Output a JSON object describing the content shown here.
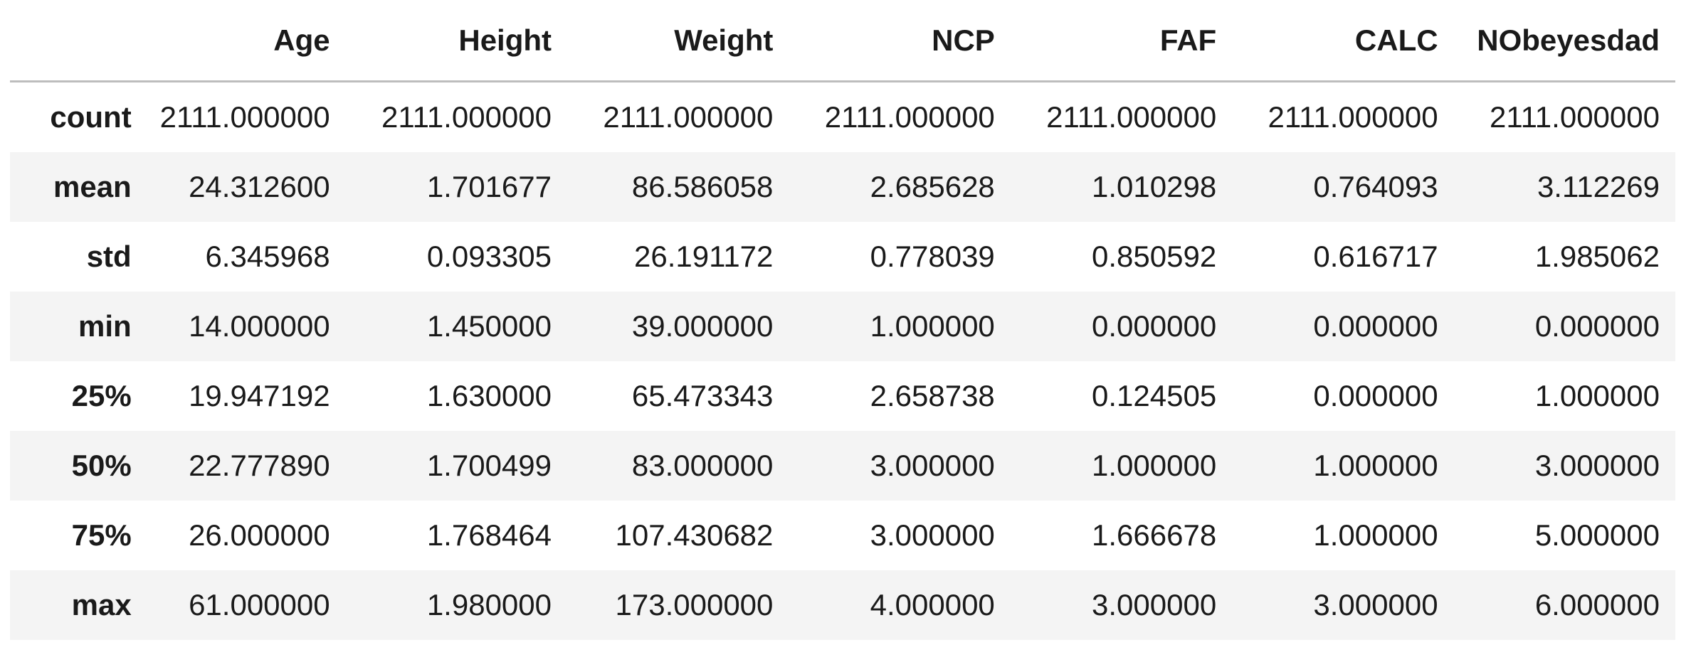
{
  "table": {
    "index_header": "",
    "columns": [
      "Age",
      "Height",
      "Weight",
      "NCP",
      "FAF",
      "CALC",
      "NObeyesdad"
    ],
    "rows": [
      {
        "label": "count",
        "values": [
          "2111.000000",
          "2111.000000",
          "2111.000000",
          "2111.000000",
          "2111.000000",
          "2111.000000",
          "2111.000000"
        ]
      },
      {
        "label": "mean",
        "values": [
          "24.312600",
          "1.701677",
          "86.586058",
          "2.685628",
          "1.010298",
          "0.764093",
          "3.112269"
        ]
      },
      {
        "label": "std",
        "values": [
          "6.345968",
          "0.093305",
          "26.191172",
          "0.778039",
          "0.850592",
          "0.616717",
          "1.985062"
        ]
      },
      {
        "label": "min",
        "values": [
          "14.000000",
          "1.450000",
          "39.000000",
          "1.000000",
          "0.000000",
          "0.000000",
          "0.000000"
        ]
      },
      {
        "label": "25%",
        "values": [
          "19.947192",
          "1.630000",
          "65.473343",
          "2.658738",
          "0.124505",
          "0.000000",
          "1.000000"
        ]
      },
      {
        "label": "50%",
        "values": [
          "22.777890",
          "1.700499",
          "83.000000",
          "3.000000",
          "1.000000",
          "1.000000",
          "3.000000"
        ]
      },
      {
        "label": "75%",
        "values": [
          "26.000000",
          "1.768464",
          "107.430682",
          "3.000000",
          "1.666678",
          "1.000000",
          "5.000000"
        ]
      },
      {
        "label": "max",
        "values": [
          "61.000000",
          "1.980000",
          "173.000000",
          "4.000000",
          "3.000000",
          "3.000000",
          "6.000000"
        ]
      }
    ]
  }
}
